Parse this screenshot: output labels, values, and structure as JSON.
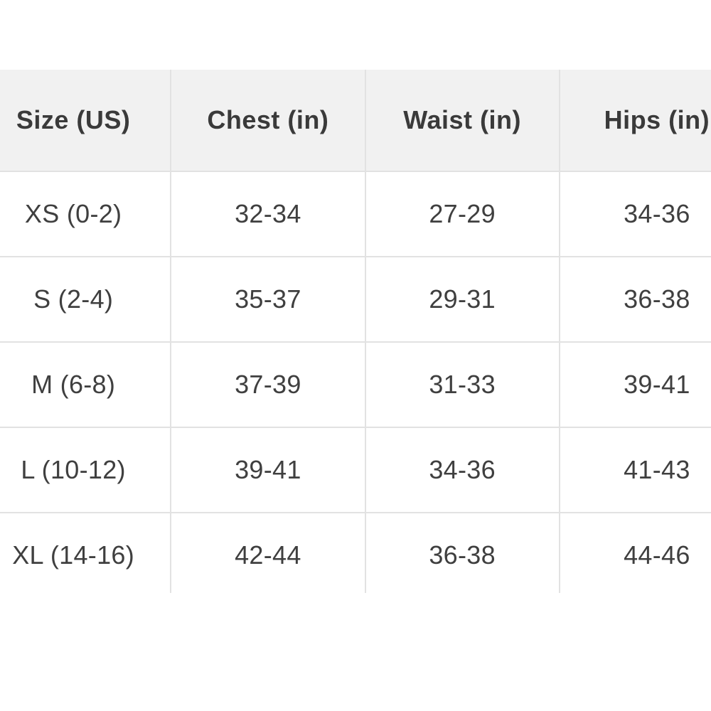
{
  "chart_data": {
    "type": "table",
    "columns": [
      "Size (US)",
      "Chest (in)",
      "Waist (in)",
      "Hips (in)"
    ],
    "rows": [
      [
        "XS (0-2)",
        "32-34",
        "27-29",
        "34-36"
      ],
      [
        "S (2-4)",
        "35-37",
        "29-31",
        "36-38"
      ],
      [
        "M (6-8)",
        "37-39",
        "31-33",
        "39-41"
      ],
      [
        "L (10-12)",
        "39-41",
        "34-36",
        "41-43"
      ],
      [
        "XL (14-16)",
        "42-44",
        "36-38",
        "44-46"
      ]
    ],
    "layout_hints": {
      "alignment": "center",
      "header_background": "#f1f1f1",
      "border_color": "#e2e2e2",
      "header_text_color": "#3a3a3a",
      "body_text_color": "#3f3f3f",
      "page_background": "#ffffff",
      "cropping": "table is cut off at left, right and bottom viewport edges"
    }
  }
}
